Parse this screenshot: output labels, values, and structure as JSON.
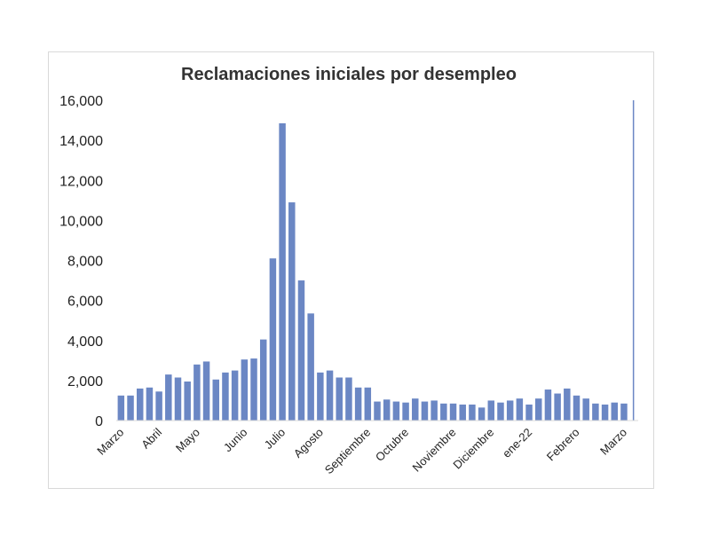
{
  "chart_data": {
    "type": "bar",
    "title": "Reclamaciones iniciales por desempleo",
    "xlabel": "",
    "ylabel": "",
    "ylim": [
      0,
      16000
    ],
    "ytick_labels": [
      "0",
      "2,000",
      "4,000",
      "6,000",
      "8,000",
      "10,000",
      "12,000",
      "14,000",
      "16,000"
    ],
    "grid": false,
    "legend": false,
    "bar_color": "#6b87c4",
    "values": [
      1250,
      1250,
      1600,
      1650,
      1450,
      2300,
      2150,
      1950,
      2800,
      2950,
      2050,
      2400,
      2500,
      3050,
      3100,
      4050,
      8100,
      14850,
      10900,
      7000,
      5350,
      2400,
      2500,
      2150,
      2150,
      1650,
      1650,
      950,
      1050,
      950,
      900,
      1100,
      950,
      1000,
      850,
      850,
      800,
      800,
      650,
      1000,
      900,
      1000,
      1100,
      800,
      1100,
      1550,
      1350,
      1600,
      1250,
      1100,
      850,
      800,
      900,
      850,
      16000
    ],
    "x_tick_labels": [
      {
        "label": "Marzo",
        "index": 0
      },
      {
        "label": "Abril",
        "index": 4
      },
      {
        "label": "Mayo",
        "index": 8
      },
      {
        "label": "Junio",
        "index": 13
      },
      {
        "label": "Julio",
        "index": 17
      },
      {
        "label": "Agosto",
        "index": 21
      },
      {
        "label": "Septiembre",
        "index": 26
      },
      {
        "label": "Octubre",
        "index": 30
      },
      {
        "label": "Noviembre",
        "index": 35
      },
      {
        "label": "Diciembre",
        "index": 39
      },
      {
        "label": "ene-22",
        "index": 43
      },
      {
        "label": "Febrero",
        "index": 48
      },
      {
        "label": "Marzo",
        "index": 53
      }
    ]
  }
}
